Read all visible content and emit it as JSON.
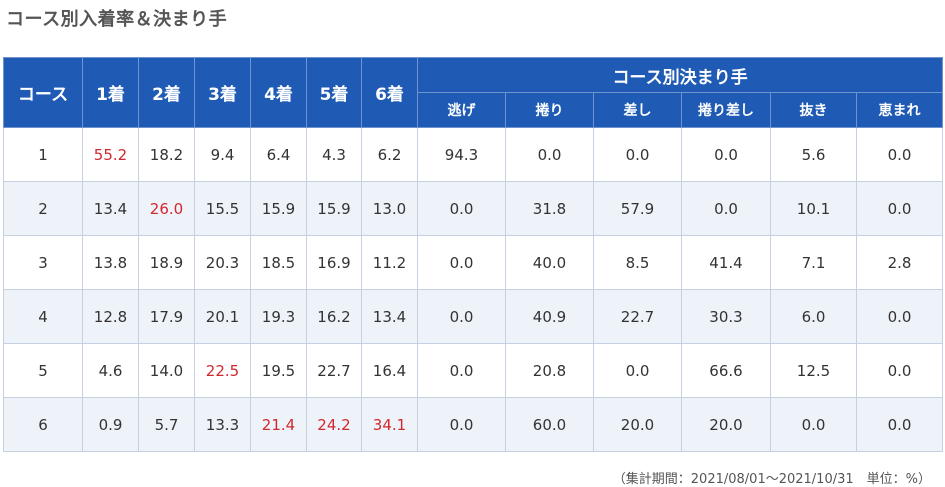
{
  "title": "コース別入着率＆決まり手",
  "header": {
    "course": "コース",
    "places": [
      "1着",
      "2着",
      "3着",
      "4着",
      "5着",
      "6着"
    ],
    "kimarite_group": "コース別決まり手",
    "kimarite": [
      "逃げ",
      "捲り",
      "差し",
      "捲り差し",
      "抜き",
      "恵まれ"
    ]
  },
  "rows": [
    {
      "course": "1",
      "places": [
        "55.2",
        "18.2",
        "9.4",
        "6.4",
        "4.3",
        "6.2"
      ],
      "kimarite": [
        "94.3",
        "0.0",
        "0.0",
        "0.0",
        "5.6",
        "0.0"
      ],
      "highlight": [
        0
      ]
    },
    {
      "course": "2",
      "places": [
        "13.4",
        "26.0",
        "15.5",
        "15.9",
        "15.9",
        "13.0"
      ],
      "kimarite": [
        "0.0",
        "31.8",
        "57.9",
        "0.0",
        "10.1",
        "0.0"
      ],
      "highlight": [
        1
      ]
    },
    {
      "course": "3",
      "places": [
        "13.8",
        "18.9",
        "20.3",
        "18.5",
        "16.9",
        "11.2"
      ],
      "kimarite": [
        "0.0",
        "40.0",
        "8.5",
        "41.4",
        "7.1",
        "2.8"
      ],
      "highlight": []
    },
    {
      "course": "4",
      "places": [
        "12.8",
        "17.9",
        "20.1",
        "19.3",
        "16.2",
        "13.4"
      ],
      "kimarite": [
        "0.0",
        "40.9",
        "22.7",
        "30.3",
        "6.0",
        "0.0"
      ],
      "highlight": []
    },
    {
      "course": "5",
      "places": [
        "4.6",
        "14.0",
        "22.5",
        "19.5",
        "22.7",
        "16.4"
      ],
      "kimarite": [
        "0.0",
        "20.8",
        "0.0",
        "66.6",
        "12.5",
        "0.0"
      ],
      "highlight": [
        2
      ]
    },
    {
      "course": "6",
      "places": [
        "0.9",
        "5.7",
        "13.3",
        "21.4",
        "24.2",
        "34.1"
      ],
      "kimarite": [
        "0.0",
        "60.0",
        "20.0",
        "20.0",
        "0.0",
        "0.0"
      ],
      "highlight": [
        3,
        4,
        5
      ]
    }
  ],
  "footnote": "（集計期間：2021/08/01～2021/10/31　単位：%）",
  "colors": {
    "header_bg": "#1f5bb4",
    "highlight_text": "#d0282e",
    "stripe_bg": "#eef3fa"
  }
}
